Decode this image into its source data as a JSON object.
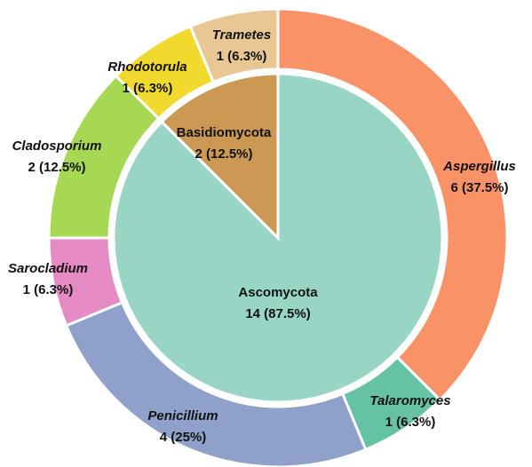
{
  "chart_data": [
    {
      "type": "pie",
      "categories": [
        "Ascomycota",
        "Basidiomycota"
      ],
      "values": [
        14,
        2
      ],
      "value_labels": [
        "14 (87.5%)",
        "2 (12.5%)"
      ],
      "colors": [
        "#99d5c5",
        "#cc9955"
      ]
    },
    {
      "type": "pie",
      "categories": [
        "Aspergillus",
        "Talaromyces",
        "Penicillium",
        "Sarocladium",
        "Cladosporium",
        "Rhodotorula",
        "Trametes"
      ],
      "values": [
        6,
        1,
        4,
        1,
        2,
        1,
        1
      ],
      "value_labels": [
        "6 (37.5%)",
        "1 (6.3%)",
        "4 (25%)",
        "1 (6.3%)",
        "2 (12.5%)",
        "1 (6.3%)",
        "1 (6.3%)"
      ],
      "colors": [
        "#f99367",
        "#66c2a5",
        "#8fa0cb",
        "#e68ac3",
        "#a6d854",
        "#f2d92e",
        "#e9c794"
      ]
    }
  ]
}
